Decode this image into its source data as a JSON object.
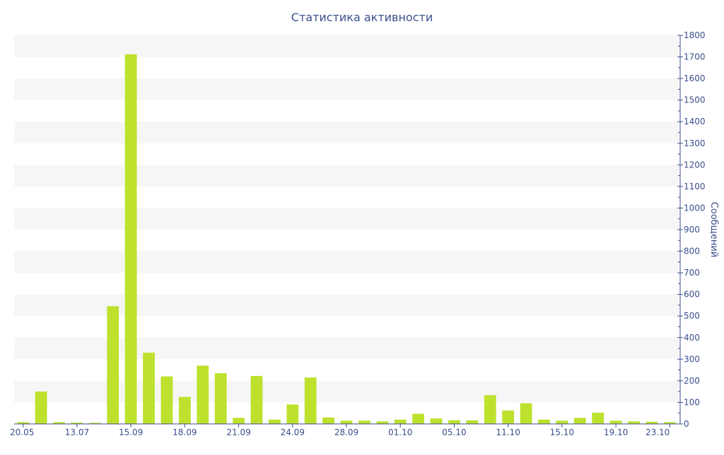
{
  "chart_data": {
    "type": "bar",
    "title": "Статистика активности",
    "ylabel": "Сообщений",
    "xlabel": "",
    "ylim": [
      0,
      1800
    ],
    "y_ticks": [
      0,
      100,
      200,
      300,
      400,
      500,
      600,
      700,
      800,
      900,
      1000,
      1100,
      1200,
      1300,
      1400,
      1500,
      1600,
      1700,
      1800
    ],
    "y_axis_side": "right",
    "x_tick_labels": [
      {
        "index": 0,
        "label": "20.05"
      },
      {
        "index": 3,
        "label": "13.07"
      },
      {
        "index": 6,
        "label": "15.09"
      },
      {
        "index": 9,
        "label": "18.09"
      },
      {
        "index": 12,
        "label": "21.09"
      },
      {
        "index": 15,
        "label": "24.09"
      },
      {
        "index": 18,
        "label": "28.09"
      },
      {
        "index": 21,
        "label": "01.10"
      },
      {
        "index": 24,
        "label": "05.10"
      },
      {
        "index": 27,
        "label": "11.10"
      },
      {
        "index": 30,
        "label": "15.10"
      },
      {
        "index": 33,
        "label": "19.10"
      },
      {
        "index": 36,
        "label": "23.10"
      }
    ],
    "values": [
      8,
      150,
      8,
      6,
      5,
      545,
      1712,
      330,
      220,
      125,
      270,
      235,
      28,
      222,
      20,
      90,
      215,
      30,
      15,
      15,
      12,
      20,
      47,
      25,
      17,
      17,
      133,
      62,
      96,
      20,
      15,
      28,
      52,
      15,
      12,
      10,
      8
    ],
    "colors": {
      "bar": "#bde12d",
      "axis": "#3b4f8c",
      "band": "#f6f6f6"
    },
    "grid": "alternating horizontal bands",
    "legend": "none"
  }
}
